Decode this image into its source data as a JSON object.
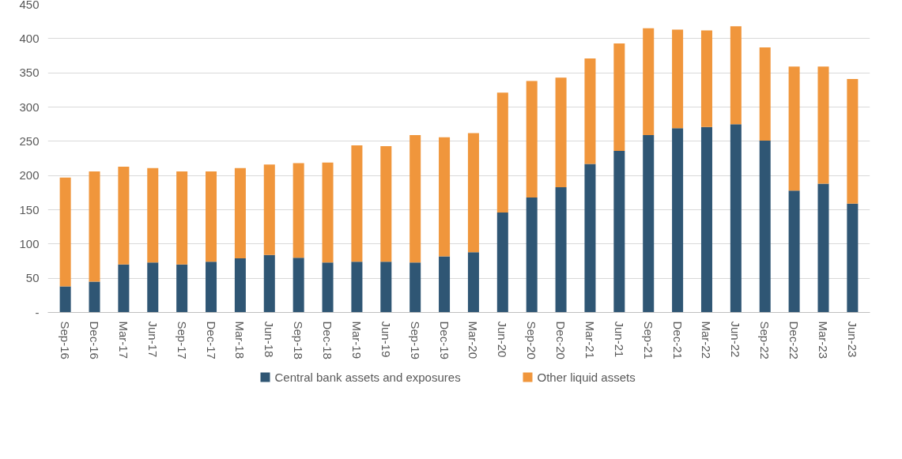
{
  "chart_data": {
    "type": "bar",
    "stacked": true,
    "categories": [
      "Sep-16",
      "Dec-16",
      "Mar-17",
      "Jun-17",
      "Sep-17",
      "Dec-17",
      "Mar-18",
      "Jun-18",
      "Sep-18",
      "Dec-18",
      "Mar-19",
      "Jun-19",
      "Sep-19",
      "Dec-19",
      "Mar-20",
      "Jun-20",
      "Sep-20",
      "Dec-20",
      "Mar-21",
      "Jun-21",
      "Sep-21",
      "Dec-21",
      "Mar-22",
      "Jun-22",
      "Sep-22",
      "Dec-22",
      "Mar-23",
      "Jun-23"
    ],
    "series": [
      {
        "name": "Central bank assets and exposures",
        "color": "#2f5674",
        "values": [
          38,
          45,
          70,
          73,
          70,
          74,
          79,
          84,
          80,
          73,
          74,
          74,
          73,
          82,
          88,
          146,
          168,
          183,
          217,
          236,
          259,
          269,
          271,
          275,
          251,
          178,
          188,
          159
        ]
      },
      {
        "name": "Other liquid assets",
        "color": "#f0963c",
        "values": [
          159,
          161,
          143,
          138,
          136,
          132,
          132,
          132,
          138,
          146,
          170,
          169,
          186,
          174,
          174,
          175,
          170,
          160,
          154,
          157,
          156,
          144,
          141,
          143,
          136,
          181,
          171,
          182
        ]
      }
    ],
    "ylim": [
      0,
      450
    ],
    "yticks": [
      {
        "value": 0,
        "label": "-"
      },
      50,
      100,
      150,
      200,
      250,
      300,
      350,
      400,
      450
    ],
    "grid": "y",
    "legend": "bottom"
  }
}
